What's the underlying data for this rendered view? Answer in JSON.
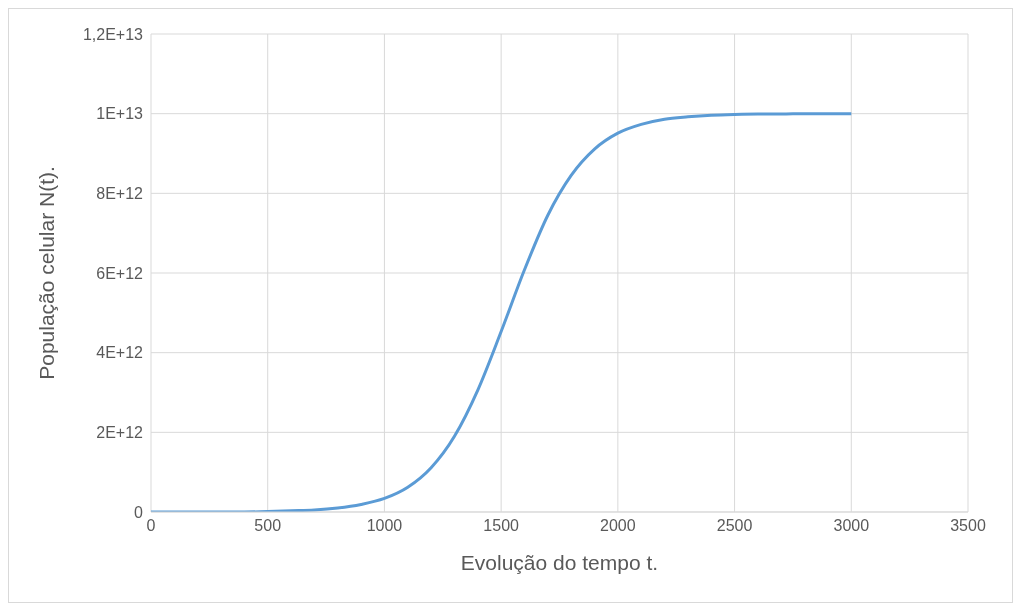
{
  "chart_data": {
    "type": "line",
    "xlabel": "Evolução do tempo t.",
    "ylabel": "População  celular N(t).",
    "x": [
      0,
      100,
      200,
      300,
      400,
      500,
      600,
      700,
      800,
      900,
      1000,
      1100,
      1200,
      1300,
      1400,
      1500,
      1600,
      1700,
      1800,
      1900,
      2000,
      2100,
      2200,
      2300,
      2400,
      2500,
      2600,
      2700,
      2800,
      2900,
      3000
    ],
    "series": [
      {
        "color": "#5b9bd5",
        "values": [
          0,
          0,
          0,
          0,
          0,
          10000000000.0,
          30000000000.0,
          50000000000.0,
          100000000000.0,
          190000000000.0,
          340000000000.0,
          620000000000.0,
          1110000000000.0,
          1900000000000.0,
          3060000000000.0,
          4530000000000.0,
          6080000000000.0,
          7450000000000.0,
          8450000000000.0,
          9110000000000.0,
          9510000000000.0,
          9730000000000.0,
          9860000000000.0,
          9920000000000.0,
          9960000000000.0,
          9980000000000.0,
          9990000000000.0,
          9990000000000.0,
          10000000000000.0,
          10000000000000.0,
          10000000000000.0
        ]
      }
    ],
    "xlim": [
      0,
      3500
    ],
    "xticks": [
      0,
      500,
      1000,
      1500,
      2000,
      2500,
      3000,
      3500
    ],
    "ylim": [
      0,
      12000000000000.0
    ],
    "yticks": [
      0,
      {
        "value": 2000000000000.0,
        "label": "2E+12"
      },
      {
        "value": 4000000000000.0,
        "label": "4E+12"
      },
      {
        "value": 6000000000000.0,
        "label": "6E+12"
      },
      {
        "value": 8000000000000.0,
        "label": "8E+12"
      },
      {
        "value": 10000000000000.0,
        "label": "1E+13"
      },
      {
        "value": 12000000000000.0,
        "label": "1,2E+13"
      }
    ],
    "grid": true,
    "marker": "none",
    "line_style": "solid",
    "legend": false
  }
}
